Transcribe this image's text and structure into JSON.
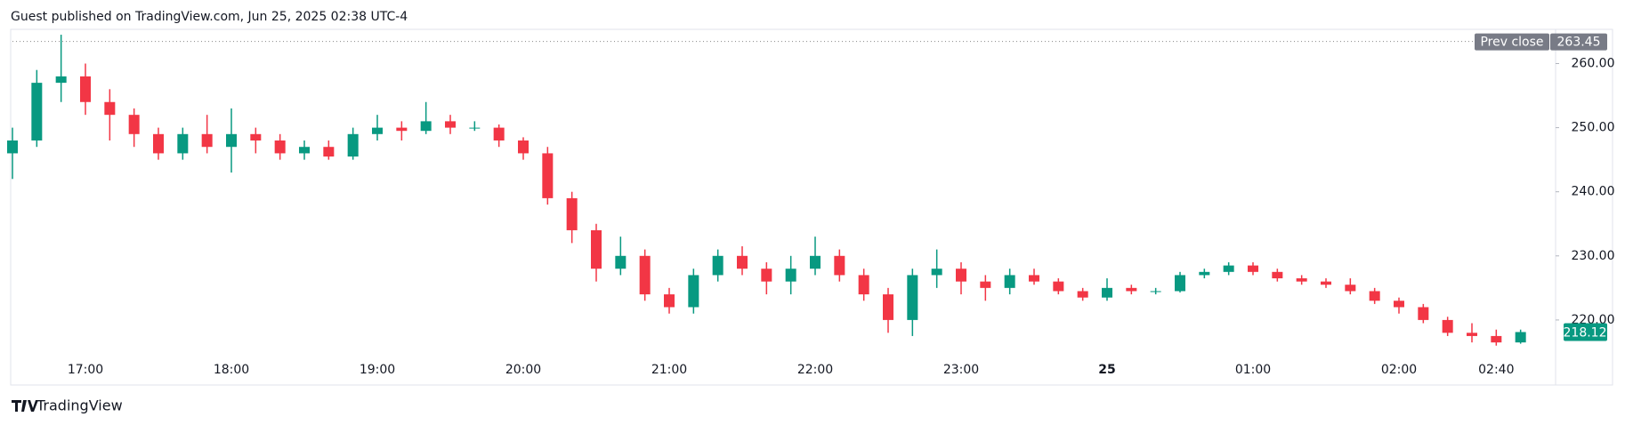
{
  "header": "Guest published on TradingView.com, Jun 25, 2025 02:38 UTC-4",
  "brand": "TradingView",
  "chart_data": {
    "type": "candlestick",
    "up_color": "#089981",
    "down_color": "#f23645",
    "x": [
      "16:30",
      "16:40",
      "16:50",
      "17:00",
      "17:10",
      "17:20",
      "17:30",
      "17:40",
      "17:50",
      "18:00",
      "18:10",
      "18:20",
      "18:30",
      "18:40",
      "18:50",
      "19:00",
      "19:10",
      "19:20",
      "19:30",
      "19:40",
      "19:50",
      "20:00",
      "20:10",
      "20:20",
      "20:30",
      "20:40",
      "20:50",
      "21:00",
      "21:10",
      "21:20",
      "21:30",
      "21:40",
      "21:50",
      "22:00",
      "22:10",
      "22:20",
      "22:30",
      "22:40",
      "22:50",
      "23:00",
      "23:10",
      "23:20",
      "23:30",
      "23:40",
      "23:50",
      "00:00",
      "00:10",
      "00:20",
      "00:30",
      "00:40",
      "00:50",
      "01:00",
      "01:10",
      "01:20",
      "01:30",
      "01:40",
      "01:50",
      "02:00",
      "02:10",
      "02:20",
      "02:30",
      "02:40",
      "02:50"
    ],
    "open": [
      246,
      248,
      257,
      258,
      254,
      252,
      249,
      246,
      249,
      247,
      249,
      248,
      246,
      247,
      245.5,
      249,
      250,
      249.5,
      251,
      250,
      250,
      248,
      246,
      239,
      234,
      228,
      230,
      224,
      222,
      227,
      230,
      228,
      226,
      228,
      230,
      227,
      224,
      220,
      227,
      228,
      226,
      225,
      227,
      226,
      224.5,
      223.5,
      225,
      224.5,
      224.5,
      227,
      227.5,
      228.5,
      227.5,
      226.5,
      226,
      225.5,
      224.5,
      223,
      222,
      220,
      218,
      217.5,
      216.5
    ],
    "high": [
      250,
      259,
      264.5,
      260,
      256,
      253,
      250,
      250,
      252,
      253,
      250,
      249,
      248,
      248,
      250,
      252,
      251,
      254,
      252,
      251,
      250.5,
      248.5,
      247,
      240,
      235,
      233,
      231,
      225,
      228,
      231,
      231.5,
      229,
      230,
      233,
      231,
      228,
      225,
      228,
      231,
      229,
      227,
      228,
      228,
      226.5,
      225,
      226.5,
      225.5,
      225,
      227.5,
      228,
      229,
      229,
      228,
      227,
      226.5,
      226.5,
      225,
      223.5,
      222.5,
      220.5,
      219.5,
      218.5,
      218.5
    ],
    "low": [
      242,
      247,
      254,
      252,
      248,
      247,
      245,
      245,
      246,
      243,
      246,
      245,
      245,
      245,
      245,
      248,
      248,
      249,
      249,
      249.5,
      247,
      245,
      238,
      232,
      226,
      227,
      223,
      221,
      221,
      226,
      227,
      224,
      224,
      227,
      226,
      223,
      218,
      217.5,
      225,
      224,
      223,
      224,
      225.5,
      224,
      223,
      223,
      224,
      224,
      224.3,
      226.5,
      227,
      227,
      226,
      225.5,
      225,
      224,
      222.5,
      221,
      219.5,
      217.5,
      216.5,
      216,
      216.3
    ],
    "close": [
      248,
      257,
      258,
      254,
      252,
      249,
      246,
      249,
      247,
      249,
      248,
      246,
      247,
      245.5,
      249,
      250,
      249.5,
      251,
      250,
      250,
      248,
      246,
      239,
      234,
      228,
      230,
      224,
      222,
      227,
      230,
      228,
      226,
      228,
      230,
      227,
      224,
      220,
      227,
      228,
      226,
      225,
      227,
      226,
      224.5,
      223.5,
      225,
      224.5,
      224.5,
      227,
      227.5,
      228.5,
      227.5,
      226.5,
      226,
      225.5,
      224.5,
      223,
      222,
      220,
      218,
      217.5,
      216.5,
      218.12
    ],
    "ylim": [
      210,
      265.2
    ],
    "yticks": [
      {
        "value": 220,
        "label": "220.00"
      },
      {
        "value": 230,
        "label": "230.00"
      },
      {
        "value": 240,
        "label": "240.00"
      },
      {
        "value": 250,
        "label": "250.00"
      },
      {
        "value": 260,
        "label": "260.00"
      }
    ],
    "xticks": [
      "17:00",
      "18:00",
      "19:00",
      "20:00",
      "21:00",
      "22:00",
      "23:00",
      {
        "value": "00:00",
        "label": "25"
      },
      "01:00",
      "02:00",
      "02:40"
    ],
    "prev_close_label": "Prev close",
    "prev_close": 263.45
  }
}
